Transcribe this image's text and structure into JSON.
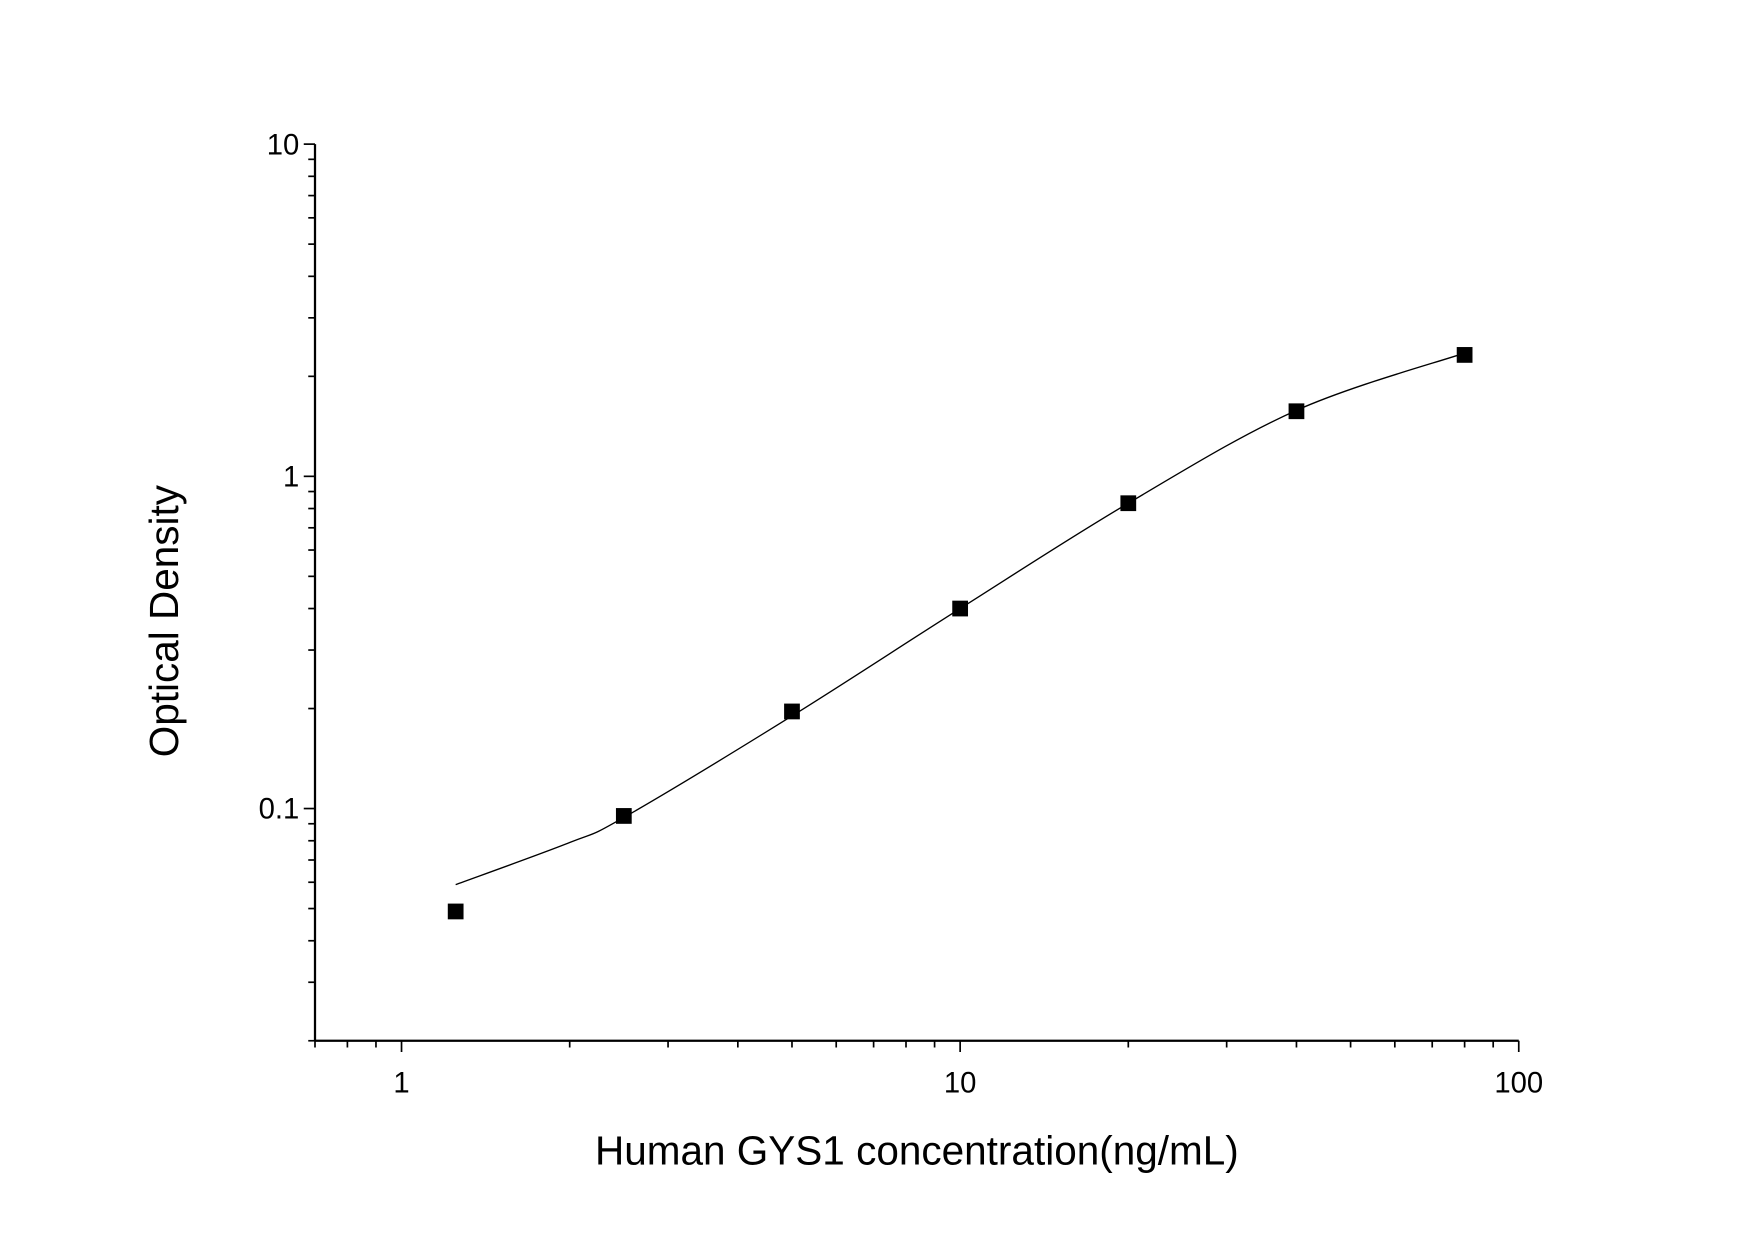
{
  "chart_data": {
    "type": "scatter",
    "title": "",
    "xlabel": "Human GYS1 concentration(ng/mL)",
    "ylabel": "Optical Density",
    "x_scale": "log",
    "y_scale": "log",
    "xlim": [
      0.7,
      100
    ],
    "ylim": [
      0.02,
      10
    ],
    "x_ticks": [
      {
        "value": 1,
        "label": "1"
      },
      {
        "value": 10,
        "label": "10"
      },
      {
        "value": 100,
        "label": "100"
      }
    ],
    "y_ticks": [
      {
        "value": 0.1,
        "label": "0.1"
      },
      {
        "value": 1,
        "label": "1"
      },
      {
        "value": 10,
        "label": "10"
      }
    ],
    "grid": false,
    "legend": "none",
    "marker": "square",
    "color": "#000000",
    "points": {
      "x": [
        1.25,
        2.5,
        5,
        10,
        20,
        40,
        80
      ],
      "y": [
        0.049,
        0.095,
        0.196,
        0.4,
        0.83,
        1.57,
        2.32
      ]
    },
    "fit_curve": {
      "x": [
        1.25,
        2,
        2.5,
        5,
        10,
        20,
        40,
        80
      ],
      "y": [
        0.059,
        0.079,
        0.094,
        0.19,
        0.4,
        0.83,
        1.58,
        2.35
      ]
    }
  }
}
